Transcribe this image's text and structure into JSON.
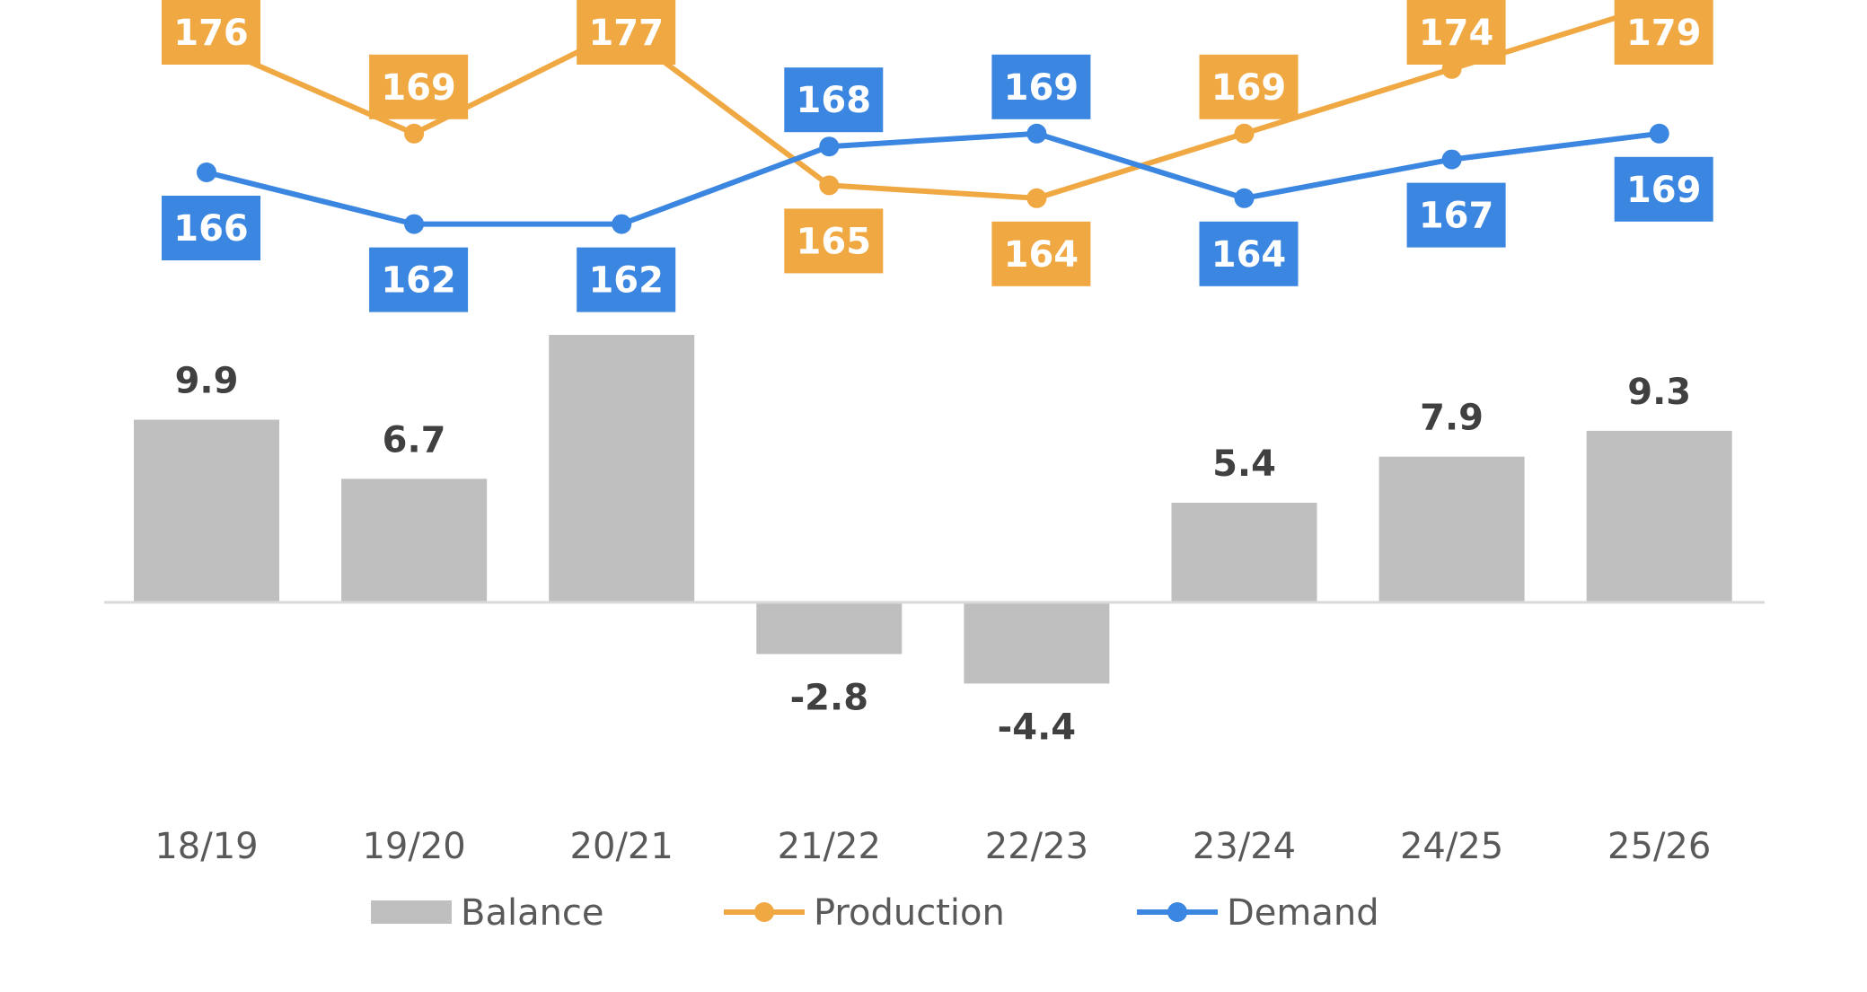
{
  "chart_data": {
    "type": "bar",
    "categories": [
      "18/19",
      "19/20",
      "20/21",
      "21/22",
      "22/23",
      "23/24",
      "24/25",
      "25/26"
    ],
    "series": [
      {
        "name": "Balance",
        "type": "bar",
        "color": "#bfbfbf",
        "values": [
          9.9,
          6.7,
          14.5,
          -2.8,
          -4.4,
          5.4,
          7.9,
          9.3
        ]
      },
      {
        "name": "Production",
        "type": "line",
        "color": "#f0a842",
        "values": [
          176,
          169,
          177,
          165,
          164,
          169,
          174,
          179
        ]
      },
      {
        "name": "Demand",
        "type": "line",
        "color": "#3a86e0",
        "values": [
          166,
          162,
          162,
          168,
          169,
          164,
          167,
          169
        ]
      }
    ],
    "axis_color": "#d9d9d9",
    "legend": {
      "position": "bottom"
    },
    "grid": false
  }
}
